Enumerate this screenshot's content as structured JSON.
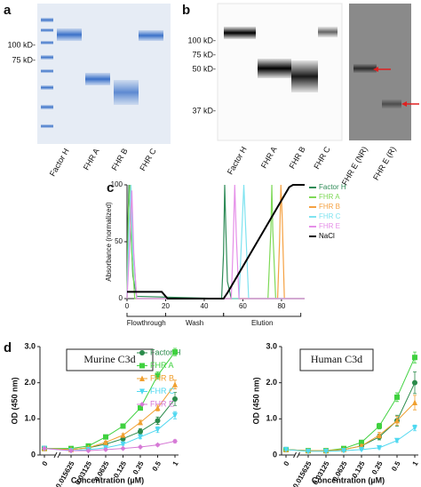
{
  "panels": {
    "a": {
      "label": "a",
      "markers": [
        "100 kD-",
        "75 kD-"
      ],
      "lanes": [
        "Factor H",
        "FHR A",
        "FHR B",
        "FHR C"
      ]
    },
    "b": {
      "label": "b",
      "markers": [
        "100 kD-",
        "75 kD-",
        "50 kD-",
        "37 kD-"
      ],
      "lanes": [
        "Factor H",
        "FHR A",
        "FHR B",
        "FHR C",
        "FHR E (NR)",
        "FHR E (R)"
      ]
    },
    "c": {
      "label": "c"
    },
    "d": {
      "label": "d"
    }
  },
  "chart_data": [
    {
      "type": "line",
      "ylabel": "Absorbance (normalized)",
      "xlim": [
        0,
        92
      ],
      "ylim": [
        0,
        100
      ],
      "xticks": [
        0,
        20,
        40,
        60,
        80
      ],
      "yticks": [
        0,
        50,
        100
      ],
      "annotations": [
        {
          "text": "Flowthrough",
          "x": [
            0,
            20
          ]
        },
        {
          "text": "Wash",
          "x": [
            20,
            50
          ]
        },
        {
          "text": "Elution",
          "x": [
            50,
            90
          ]
        }
      ],
      "series": [
        {
          "name": "Factor H",
          "color": "#2e8b57",
          "x": [
            0,
            0.5,
            1,
            2,
            3,
            5,
            49,
            50,
            50.6,
            51.2,
            52,
            54,
            92
          ],
          "values": [
            0,
            70,
            100,
            60,
            20,
            2,
            0,
            40,
            100,
            60,
            15,
            0,
            0
          ]
        },
        {
          "name": "FHR A",
          "color": "#7ed957",
          "x": [
            0,
            0.8,
            1.5,
            2.5,
            4,
            73,
            74.5,
            75,
            75.5,
            77,
            92
          ],
          "values": [
            0,
            80,
            100,
            40,
            0,
            0,
            60,
            100,
            60,
            0,
            0
          ]
        },
        {
          "name": "FHR B",
          "color": "#f5a142",
          "x": [
            0,
            1,
            2,
            3,
            5,
            78,
            79,
            79.7,
            80.4,
            81.5,
            92
          ],
          "values": [
            0,
            60,
            100,
            50,
            0,
            0,
            50,
            100,
            70,
            0,
            0
          ]
        },
        {
          "name": "FHR C",
          "color": "#7fe3f0",
          "x": [
            0,
            1,
            2,
            3,
            5,
            58,
            59.5,
            60.5,
            61.5,
            63,
            92
          ],
          "values": [
            0,
            60,
            100,
            40,
            0,
            0,
            60,
            100,
            60,
            0,
            0
          ]
        },
        {
          "name": "FHR E",
          "color": "#e58fe8",
          "x": [
            0,
            1.5,
            2.5,
            3.5,
            5,
            54,
            55,
            55.8,
            56.6,
            58,
            92
          ],
          "values": [
            0,
            50,
            95,
            40,
            0,
            0,
            50,
            100,
            55,
            0,
            0
          ]
        },
        {
          "name": "NaCl",
          "color": "#000000",
          "x": [
            0,
            18,
            21,
            50,
            52,
            84,
            86,
            92
          ],
          "values": [
            6,
            6,
            0,
            0,
            5,
            98,
            100,
            100
          ]
        }
      ]
    },
    {
      "type": "line",
      "title": "Murine  C3d",
      "xlabel": "Concentration (µM)",
      "ylabel": "OD (450 nm)",
      "categories": [
        "0",
        "0.015625",
        "0.03125",
        "0.0625",
        "0.125",
        "0.25",
        "0.5",
        "1"
      ],
      "ylim": [
        0,
        3
      ],
      "yticks": [
        0,
        {
          "value": 1,
          "label": "1.0"
        },
        {
          "value": 2,
          "label": "2.0"
        },
        {
          "value": 3,
          "label": "3.0"
        }
      ],
      "series": [
        {
          "name": "Factor H",
          "color": "#2a8a4a",
          "marker": "circle",
          "values": [
            0.18,
            0.15,
            0.2,
            0.3,
            0.45,
            0.65,
            0.95,
            1.55
          ],
          "errors": [
            0.02,
            0.02,
            0.02,
            0.03,
            0.05,
            0.08,
            0.1,
            0.18
          ]
        },
        {
          "name": "FHR A",
          "color": "#3fd13f",
          "marker": "square",
          "values": [
            0.18,
            0.18,
            0.25,
            0.5,
            0.8,
            1.3,
            2.2,
            2.85
          ],
          "errors": [
            0.02,
            0.02,
            0.02,
            0.03,
            0.05,
            0.06,
            0.1,
            0.1
          ]
        },
        {
          "name": "FHR B",
          "color": "#f0a030",
          "marker": "triangle",
          "values": [
            0.18,
            0.15,
            0.2,
            0.35,
            0.55,
            0.9,
            1.3,
            1.95
          ],
          "errors": [
            0.02,
            0.02,
            0.02,
            0.03,
            0.04,
            0.06,
            0.08,
            0.12
          ]
        },
        {
          "name": "FHR C",
          "color": "#4fd8f0",
          "marker": "down",
          "values": [
            0.18,
            0.12,
            0.15,
            0.2,
            0.3,
            0.5,
            0.7,
            1.1
          ],
          "errors": [
            0.02,
            0.02,
            0.02,
            0.02,
            0.03,
            0.05,
            0.08,
            0.1
          ]
        },
        {
          "name": "FHR E",
          "color": "#d67ad6",
          "marker": "diamond",
          "values": [
            0.18,
            0.12,
            0.12,
            0.15,
            0.18,
            0.22,
            0.28,
            0.38
          ],
          "errors": [
            0.02,
            0.02,
            0.02,
            0.02,
            0.02,
            0.02,
            0.03,
            0.04
          ]
        }
      ]
    },
    {
      "type": "line",
      "title": "Human C3d",
      "xlabel": "Concentration (µM)",
      "ylabel": "OD (450 nm)",
      "categories": [
        "0",
        "0.015625",
        "0.03125",
        "0.0625",
        "0.125",
        "0.25",
        "0.5",
        "1"
      ],
      "ylim": [
        0,
        3
      ],
      "yticks": [
        0,
        {
          "value": 1,
          "label": "1.0"
        },
        {
          "value": 2,
          "label": "2.0"
        },
        {
          "value": 3,
          "label": "3.0"
        }
      ],
      "series": [
        {
          "color": "#2a8a4a",
          "marker": "circle",
          "values": [
            0.15,
            0.12,
            0.12,
            0.15,
            0.25,
            0.5,
            0.95,
            2.0
          ],
          "errors": [
            0.02,
            0.02,
            0.02,
            0.02,
            0.04,
            0.08,
            0.15,
            0.3
          ]
        },
        {
          "color": "#3fd13f",
          "marker": "square",
          "values": [
            0.15,
            0.12,
            0.12,
            0.18,
            0.35,
            0.8,
            1.6,
            2.7
          ],
          "errors": [
            0.02,
            0.02,
            0.02,
            0.02,
            0.04,
            0.08,
            0.12,
            0.15
          ]
        },
        {
          "color": "#f0a030",
          "marker": "triangle",
          "values": [
            0.15,
            0.12,
            0.12,
            0.15,
            0.25,
            0.55,
            0.95,
            1.45
          ],
          "errors": [
            0.02,
            0.02,
            0.02,
            0.02,
            0.04,
            0.08,
            0.12,
            0.2
          ]
        },
        {
          "color": "#4fd8f0",
          "marker": "down",
          "values": [
            0.15,
            0.1,
            0.1,
            0.12,
            0.15,
            0.2,
            0.4,
            0.75
          ],
          "errors": [
            0.02,
            0.02,
            0.02,
            0.02,
            0.02,
            0.03,
            0.05,
            0.08
          ]
        }
      ]
    }
  ]
}
